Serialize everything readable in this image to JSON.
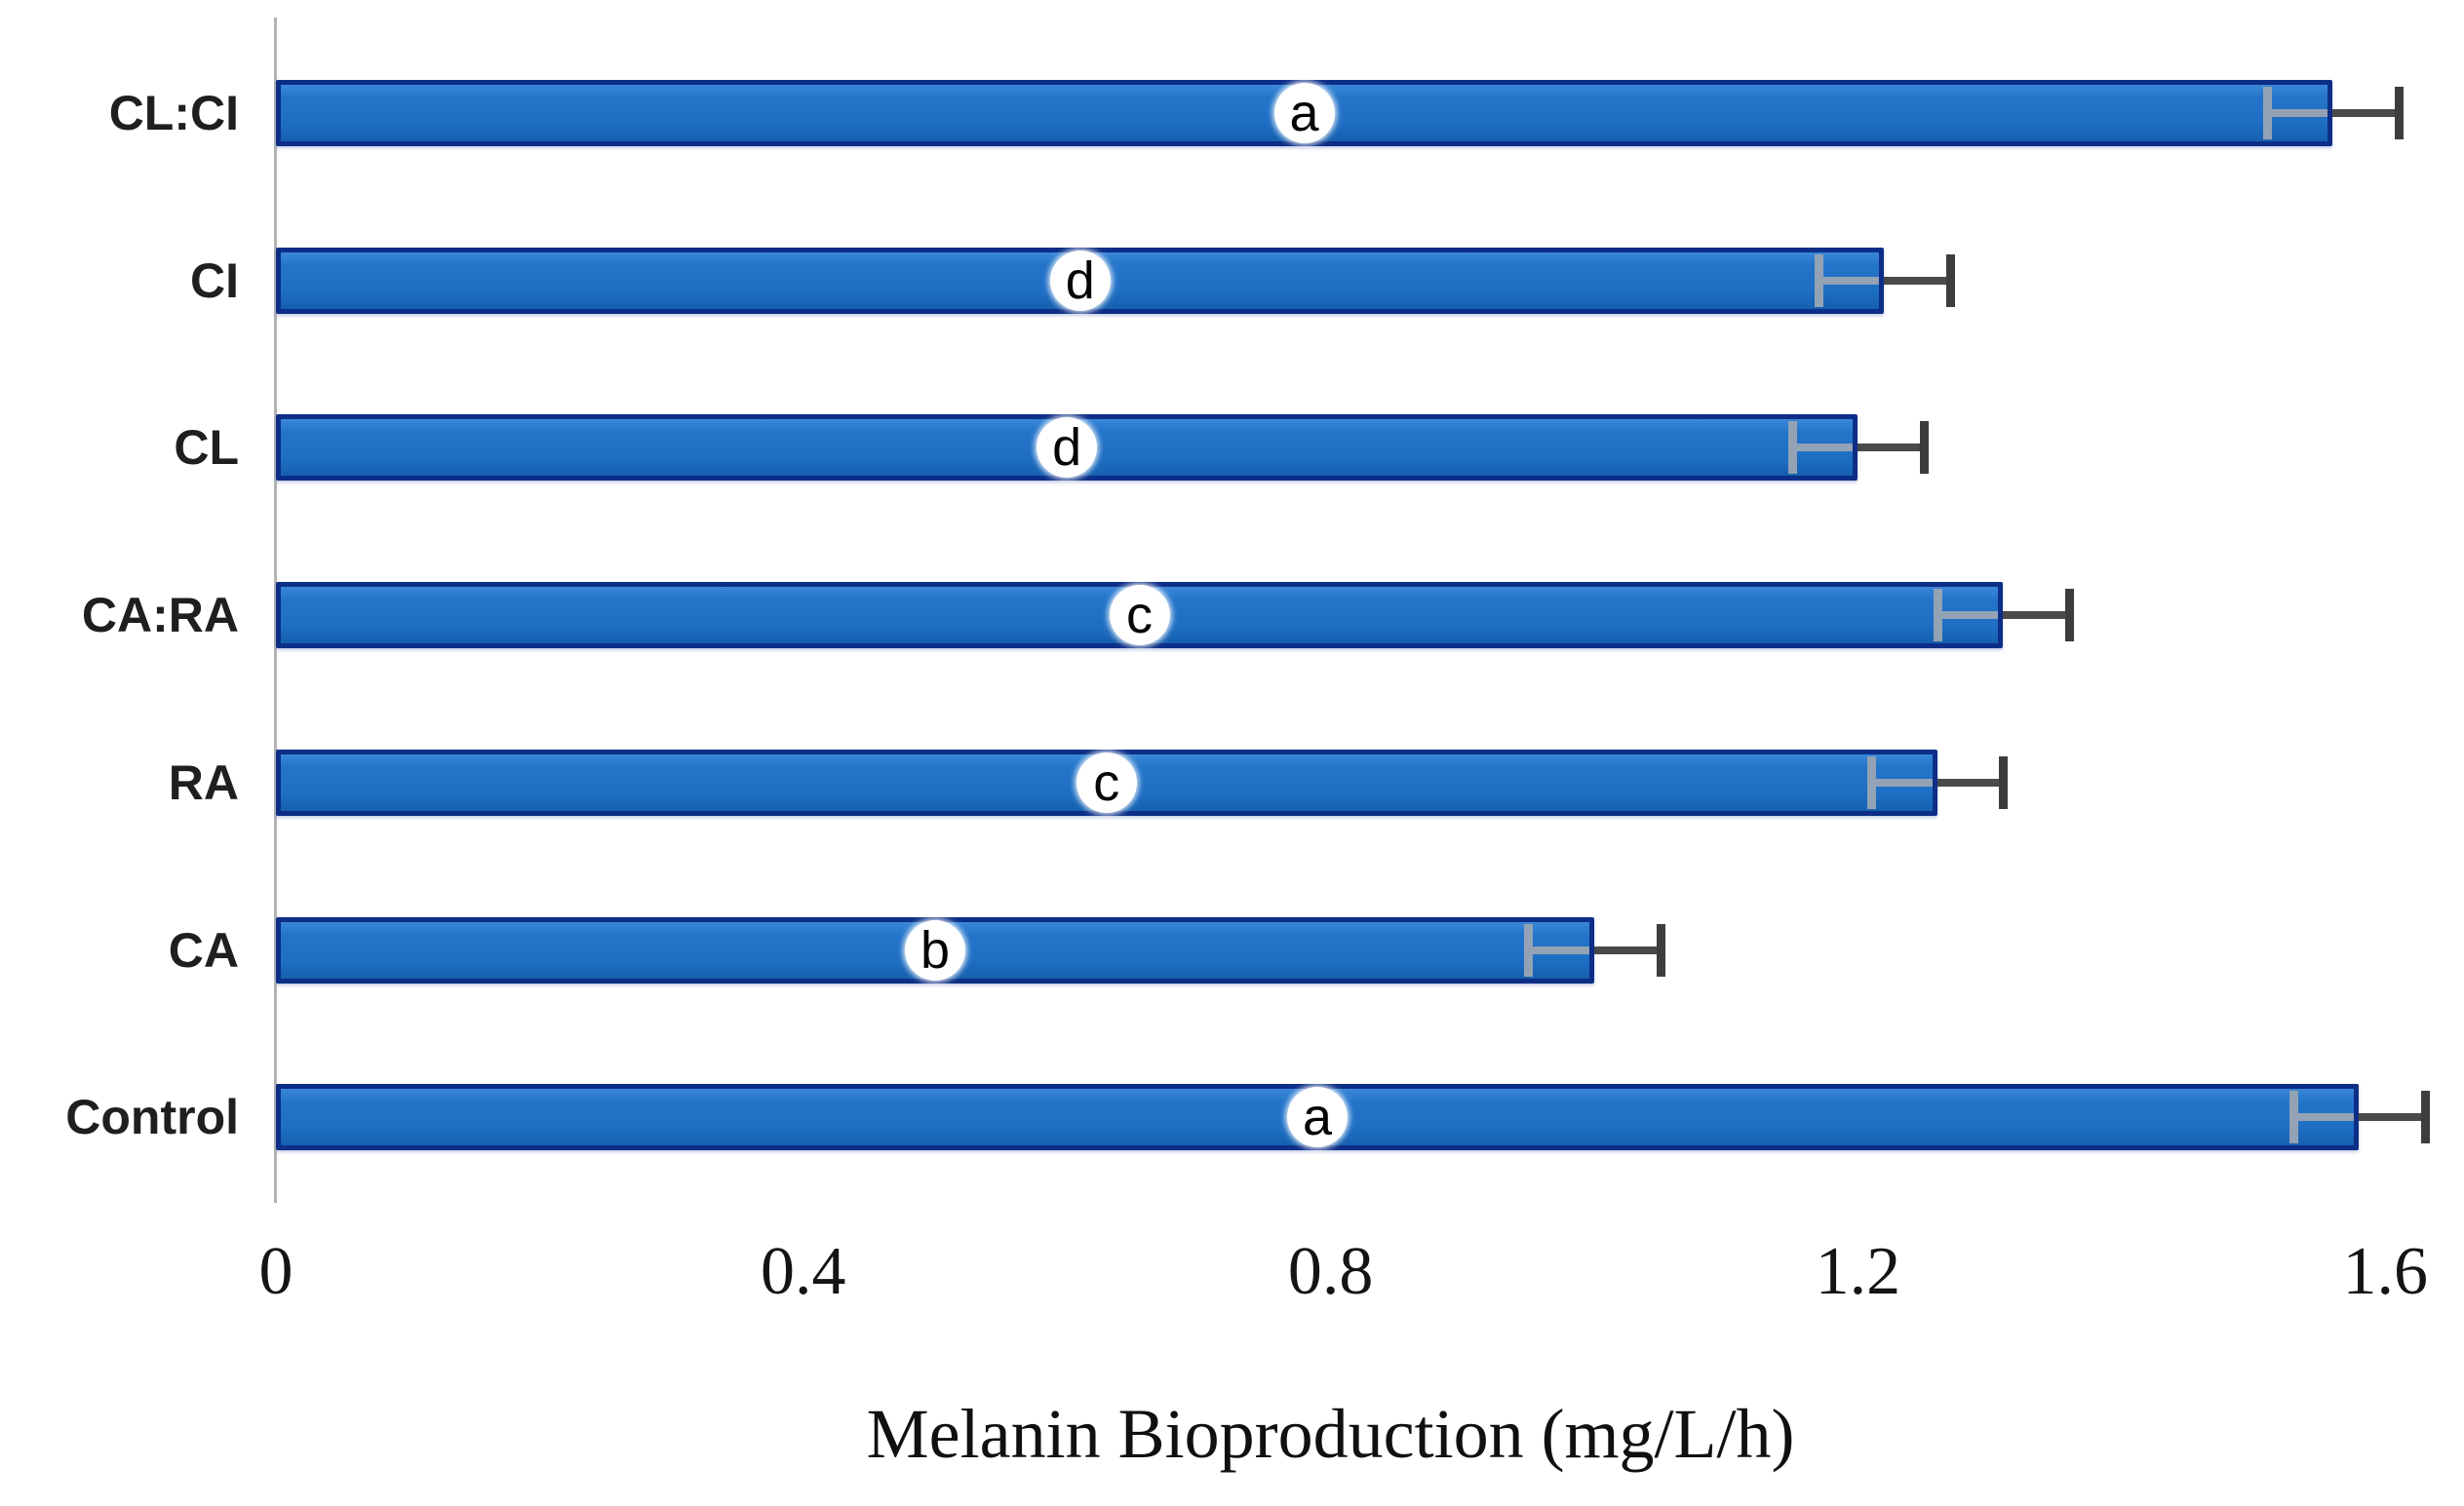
{
  "chart_data": {
    "type": "bar",
    "orientation": "horizontal",
    "title": "",
    "xlabel": "Melanin Bioproduction (mg/L/h)",
    "ylabel": "",
    "xlim": [
      0,
      1.66
    ],
    "x_ticks": [
      0,
      0.4,
      0.8,
      1.2,
      1.6
    ],
    "x_tick_labels": [
      "0",
      "0.4",
      "0.8",
      "1.2",
      "1.6"
    ],
    "grid": false,
    "legend": false,
    "categories_top_to_bottom": [
      "CL:CI",
      "CI",
      "CL",
      "CA:RA",
      "RA",
      "CA",
      "Control"
    ],
    "series": [
      {
        "name": "Melanin bioproduction",
        "values": [
          1.56,
          1.22,
          1.2,
          1.31,
          1.26,
          1.0,
          1.58
        ],
        "errors": [
          0.05,
          0.05,
          0.05,
          0.05,
          0.05,
          0.05,
          0.05
        ],
        "significance_letters": [
          "a",
          "d",
          "d",
          "c",
          "c",
          "b",
          "a"
        ]
      }
    ],
    "colors": {
      "bar_fill": "#1E6FC5",
      "bar_border": "#0C2E87",
      "error_bar_outer": "#4A4A4A",
      "error_bar_inner": "#93A2B4",
      "axis_line": "#B3B3B3",
      "badge_background": "#FFFFFF",
      "text": "#1F1F1F"
    }
  }
}
